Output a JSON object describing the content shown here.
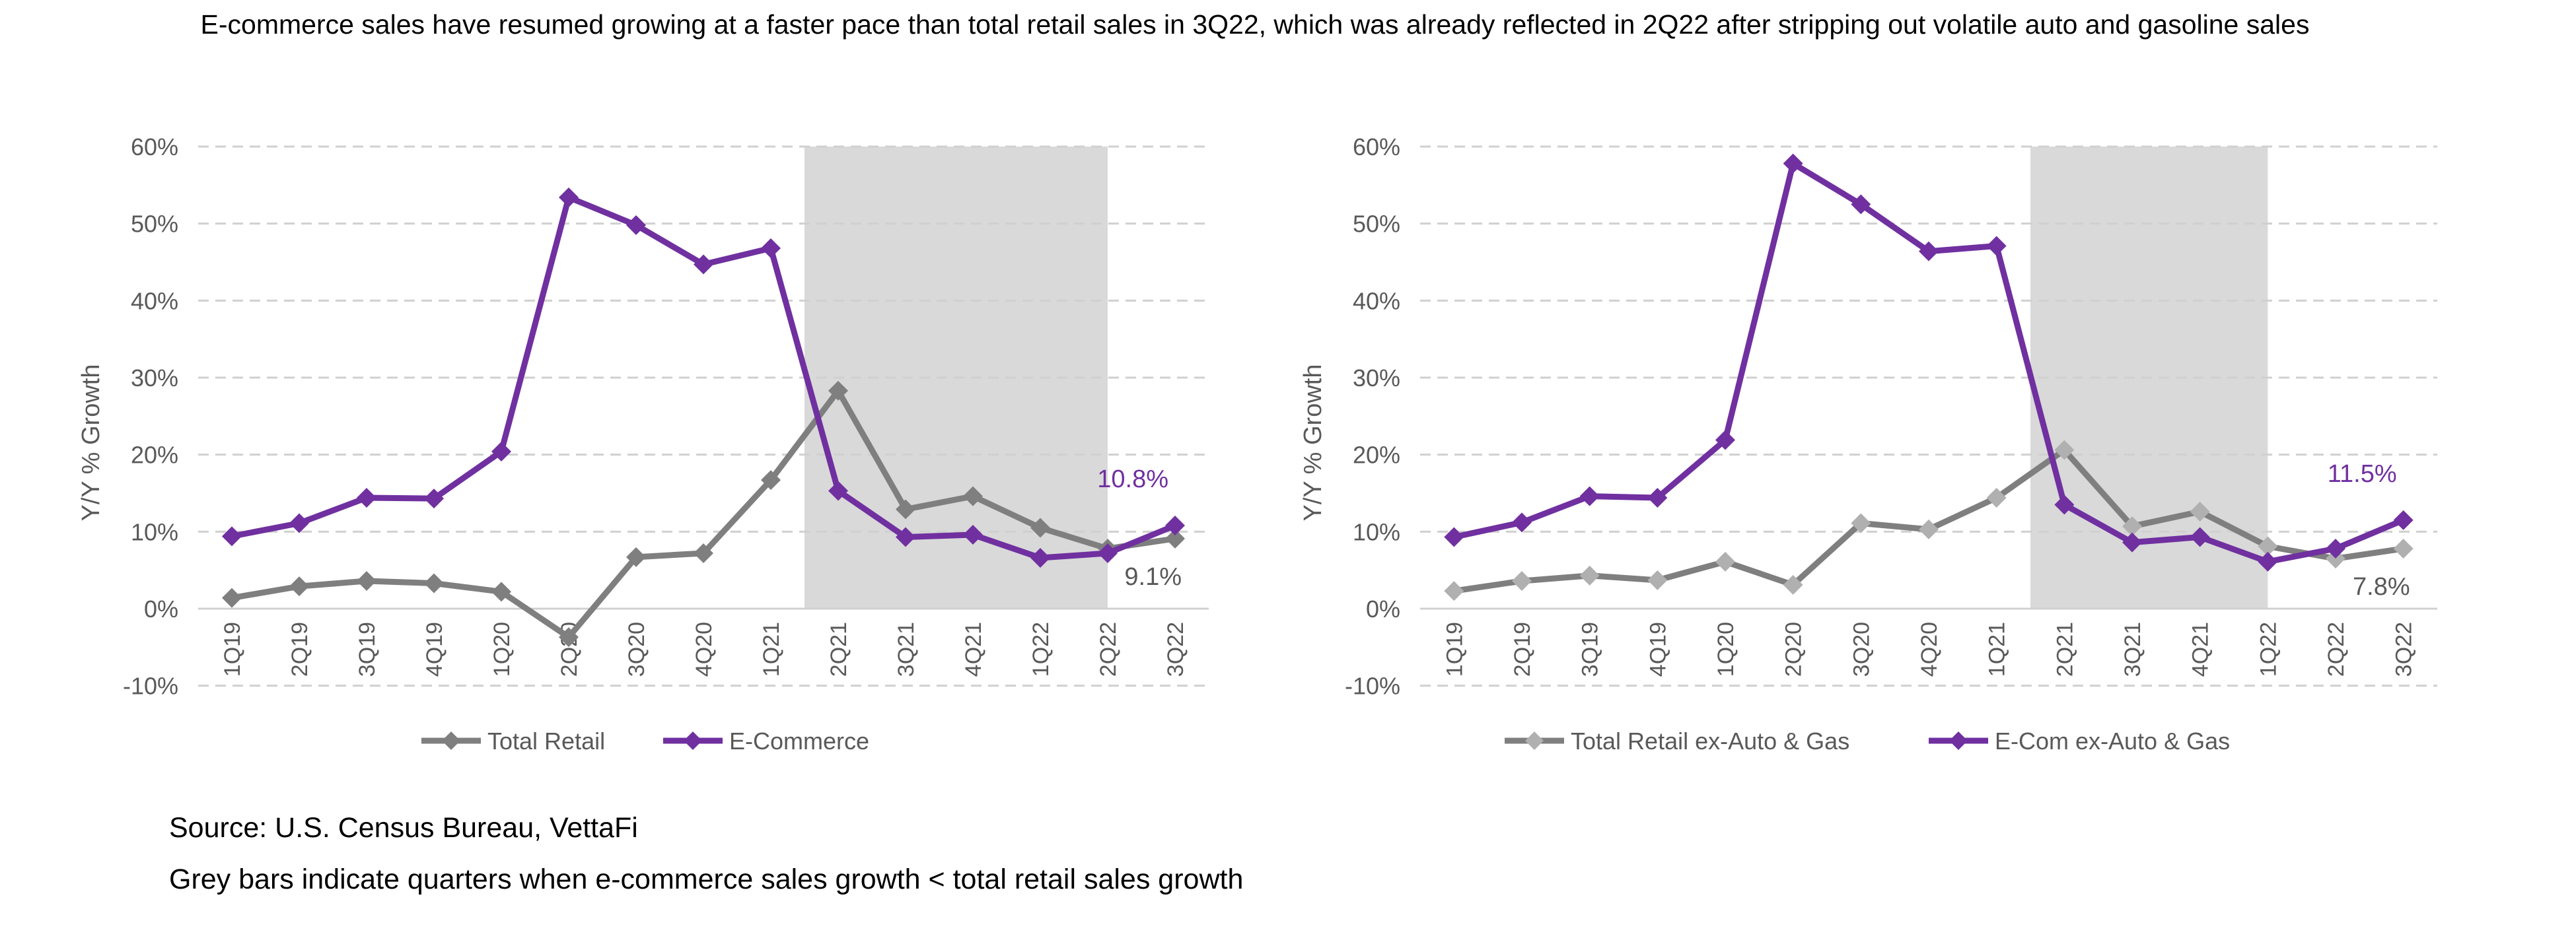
{
  "title": "E-commerce sales have resumed growing at a faster pace than total retail sales in 3Q22, which was already reflected in 2Q22 after stripping out volatile auto and gasoline sales",
  "footer": {
    "source": "Source: U.S. Census Bureau, VettaFi",
    "note": "Grey bars indicate quarters when e-commerce sales growth < total retail sales growth"
  },
  "colors": {
    "total": "#7f7f7f",
    "total_ex_marker": "#b0b0b0",
    "ecom": "#7030a0",
    "shade": "#d9d9d9",
    "grid": "#d0d0d0",
    "text": "#595959"
  },
  "chart_data": [
    {
      "type": "line",
      "categories": [
        "1Q19",
        "2Q19",
        "3Q19",
        "4Q19",
        "1Q20",
        "2Q20",
        "3Q20",
        "4Q20",
        "1Q21",
        "2Q21",
        "3Q21",
        "4Q21",
        "1Q22",
        "2Q22",
        "3Q22"
      ],
      "series": [
        {
          "name": "Total Retail",
          "values": [
            1.4,
            2.9,
            3.6,
            3.3,
            2.2,
            -3.7,
            6.7,
            7.2,
            16.7,
            28.3,
            12.9,
            14.6,
            10.5,
            7.8,
            9.1
          ]
        },
        {
          "name": "E-Commerce",
          "values": [
            9.4,
            11.1,
            14.4,
            14.3,
            20.4,
            53.4,
            49.8,
            44.7,
            46.8,
            15.3,
            9.3,
            9.6,
            6.6,
            7.2,
            10.8
          ]
        }
      ],
      "ylabel": "Y/Y % Growth",
      "ylim": [
        -10,
        60
      ],
      "yticks": [
        "-10%",
        "0%",
        "10%",
        "20%",
        "30%",
        "40%",
        "50%",
        "60%"
      ],
      "grid": true,
      "legend": "bottom",
      "shaded_range": [
        "2Q21",
        "2Q22"
      ],
      "annotations": [
        "10.8%",
        "9.1%"
      ]
    },
    {
      "type": "line",
      "categories": [
        "1Q19",
        "2Q19",
        "3Q19",
        "4Q19",
        "1Q20",
        "2Q20",
        "3Q20",
        "4Q20",
        "1Q21",
        "2Q21",
        "3Q21",
        "4Q21",
        "1Q22",
        "2Q22",
        "3Q22"
      ],
      "series": [
        {
          "name": "Total Retail ex-Auto & Gas",
          "values": [
            2.3,
            3.6,
            4.3,
            3.7,
            6.1,
            3.1,
            11.1,
            10.3,
            14.4,
            20.6,
            10.7,
            12.6,
            8.1,
            6.5,
            7.8
          ]
        },
        {
          "name": "E-Com ex-Auto & Gas",
          "values": [
            9.3,
            11.2,
            14.6,
            14.4,
            21.9,
            57.8,
            52.5,
            46.4,
            47.1,
            13.5,
            8.6,
            9.3,
            6.1,
            7.8,
            11.5
          ]
        }
      ],
      "ylabel": "Y/Y % Growth",
      "ylim": [
        -10,
        60
      ],
      "yticks": [
        "-10%",
        "0%",
        "10%",
        "20%",
        "30%",
        "40%",
        "50%",
        "60%"
      ],
      "grid": true,
      "legend": "bottom",
      "shaded_range": [
        "2Q21",
        "1Q22"
      ],
      "annotations": [
        "11.5%",
        "7.8%"
      ]
    }
  ]
}
